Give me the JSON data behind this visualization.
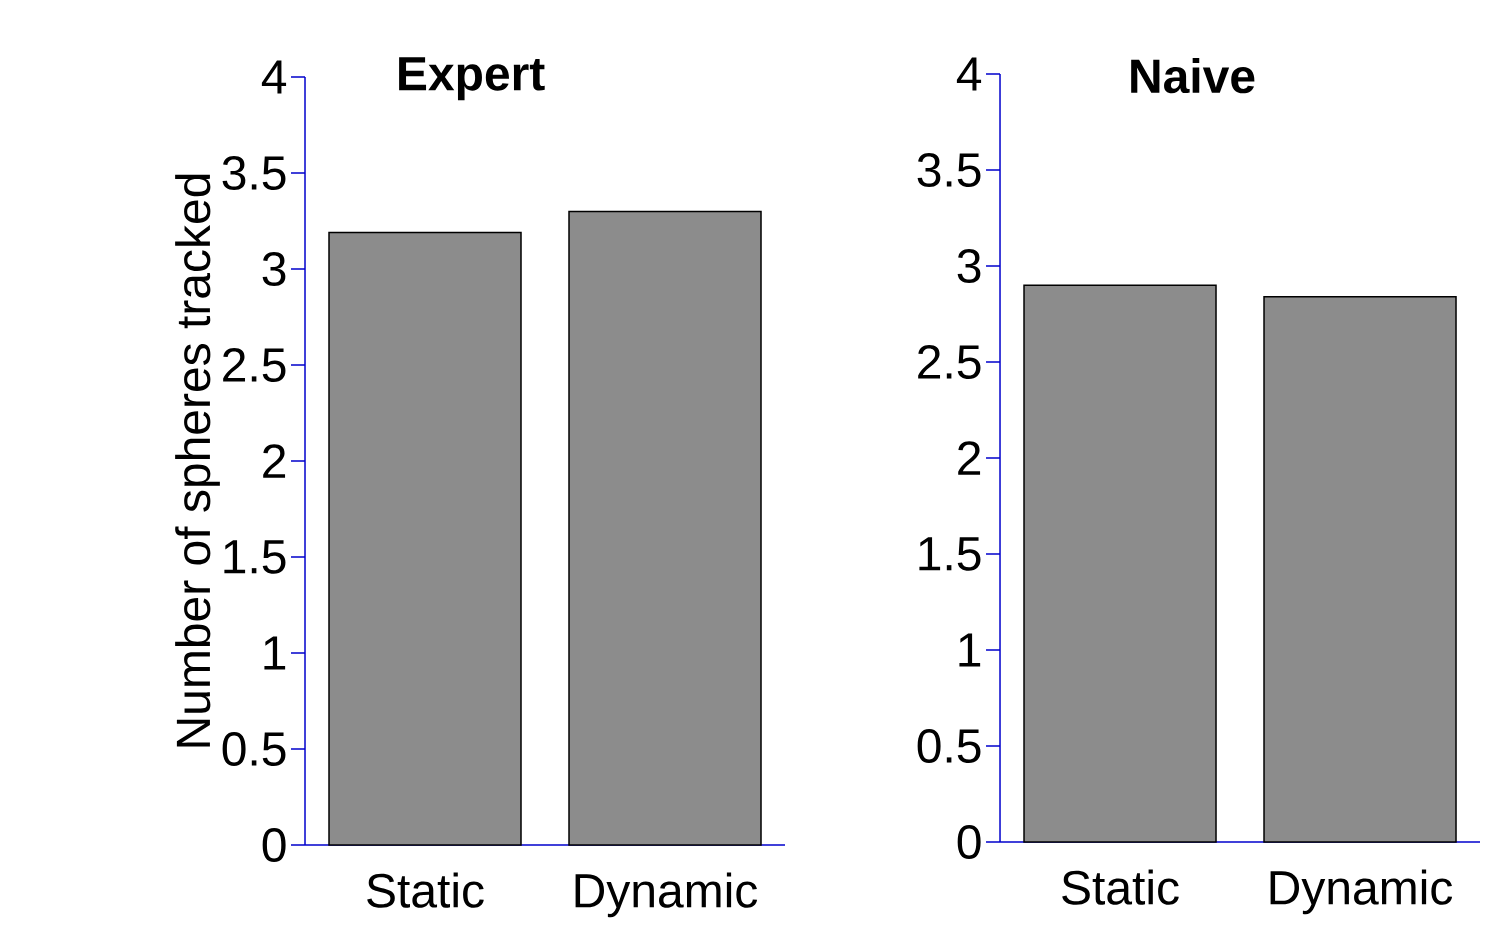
{
  "chart_data": [
    {
      "type": "bar",
      "title": "Expert",
      "ylabel": "Number of spheres tracked",
      "categories": [
        "Static",
        "Dynamic"
      ],
      "values": [
        3.19,
        3.3
      ],
      "color": "#8c8c8c",
      "ylim": [
        0,
        4
      ],
      "yticks": [
        0,
        0.5,
        1,
        1.5,
        2,
        2.5,
        3,
        3.5,
        4
      ]
    },
    {
      "type": "bar",
      "title": "Naive",
      "categories": [
        "Static",
        "Dynamic"
      ],
      "values": [
        2.9,
        2.84
      ],
      "color": "#8c8c8c",
      "ylim": [
        0,
        4
      ],
      "yticks": [
        0,
        0.5,
        1,
        1.5,
        2,
        2.5,
        3,
        3.5,
        4
      ]
    }
  ]
}
